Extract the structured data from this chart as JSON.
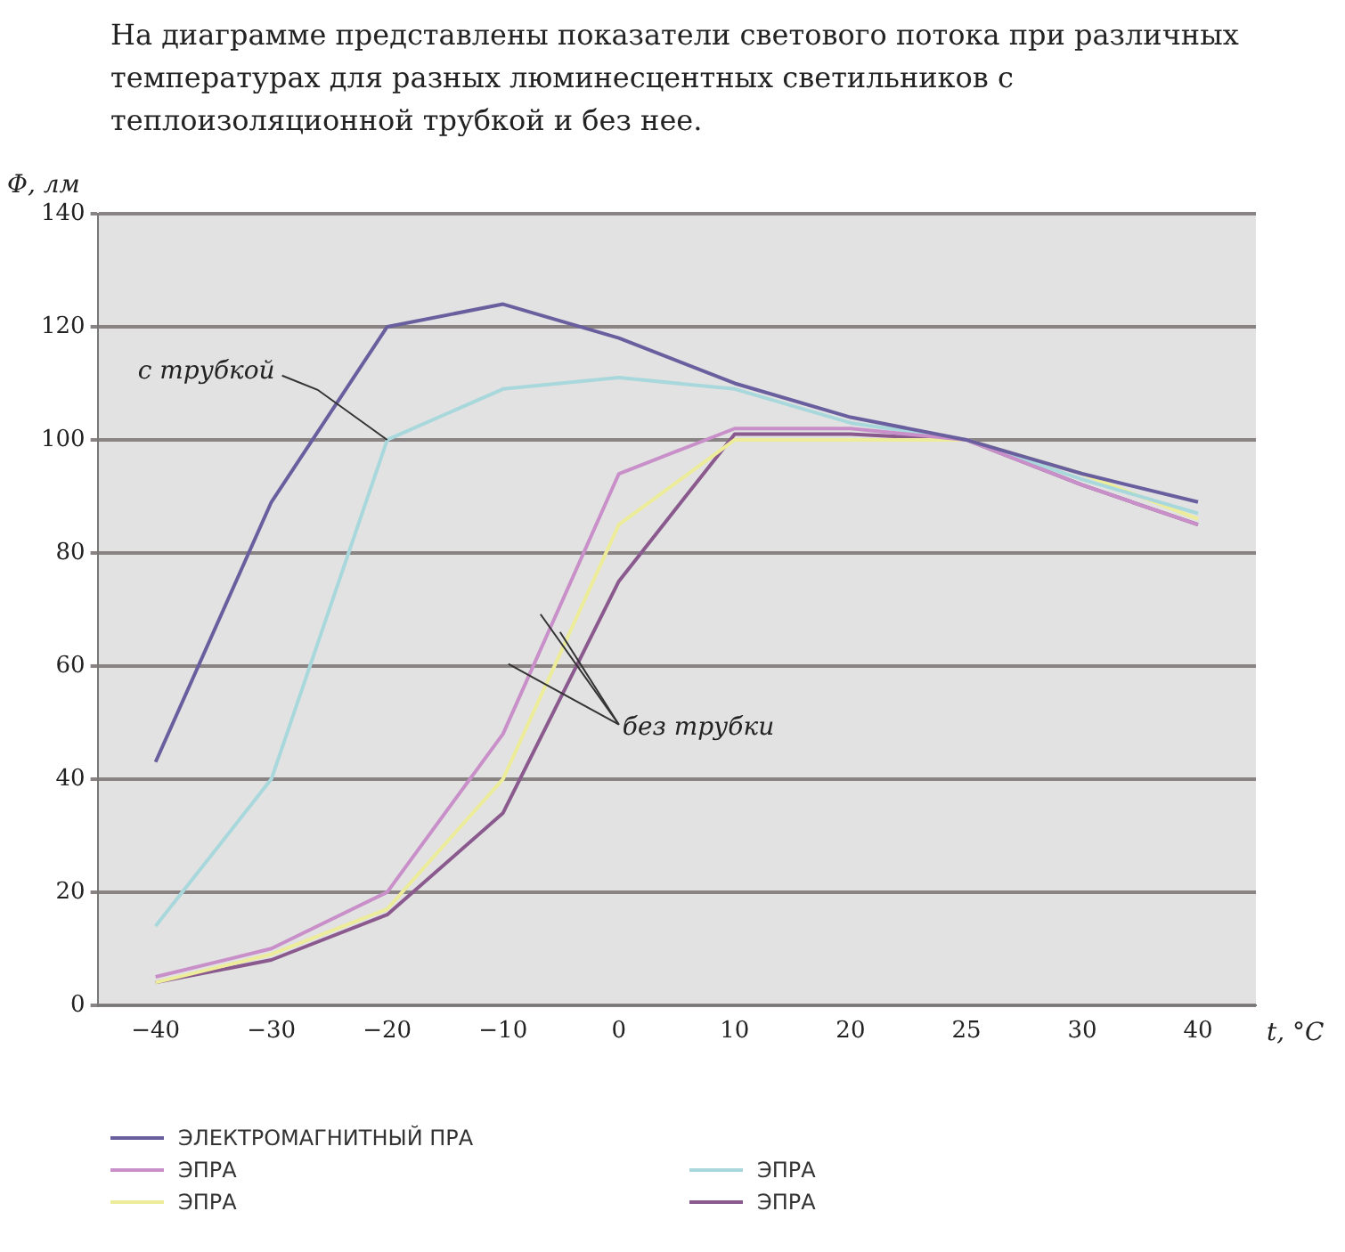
{
  "chart_data": {
    "type": "line",
    "title": "На диаграмме представлены показатели светового потока при различных температурах для разных люминесцентных светильников с теплоизоляционной трубкой и без нее.",
    "xlabel": "t, °C",
    "ylabel": "Φ, лм",
    "categories": [
      "−40",
      "−30",
      "−20",
      "−10",
      "0",
      "10",
      "20",
      "25",
      "30",
      "40"
    ],
    "series": [
      {
        "name": "ЭЛЕКТРОМАГНИТНЫЙ ПРА",
        "color": "#6a5f9e",
        "values": [
          43,
          89,
          120,
          124,
          118,
          110,
          104,
          100,
          94,
          89
        ]
      },
      {
        "name": "ЭПРА",
        "color": "#c88fc8",
        "values": [
          5,
          10,
          20,
          48,
          94,
          102,
          102,
          100,
          92,
          85
        ]
      },
      {
        "name": "ЭПРА",
        "color": "#a8d8dc",
        "values": [
          14,
          40,
          100,
          109,
          111,
          109,
          103,
          100,
          93,
          87
        ]
      },
      {
        "name": "ЭПРА",
        "color": "#ecec9a",
        "values": [
          4,
          9,
          17,
          40,
          85,
          100,
          100,
          100,
          94,
          86
        ]
      },
      {
        "name": "ЭПРА",
        "color": "#8a5a8e",
        "values": [
          4,
          8,
          16,
          34,
          75,
          101,
          101,
          100,
          92,
          85
        ]
      }
    ],
    "ylim": [
      0,
      140
    ],
    "yticks": [
      0,
      20,
      40,
      60,
      80,
      100,
      120,
      140
    ],
    "grid": "y",
    "legend": "bottom",
    "marker": "none",
    "line_style": "solid",
    "annotations": [
      {
        "text": "с трубкой",
        "x": "−20",
        "y": 100
      },
      "без трубки"
    ]
  }
}
